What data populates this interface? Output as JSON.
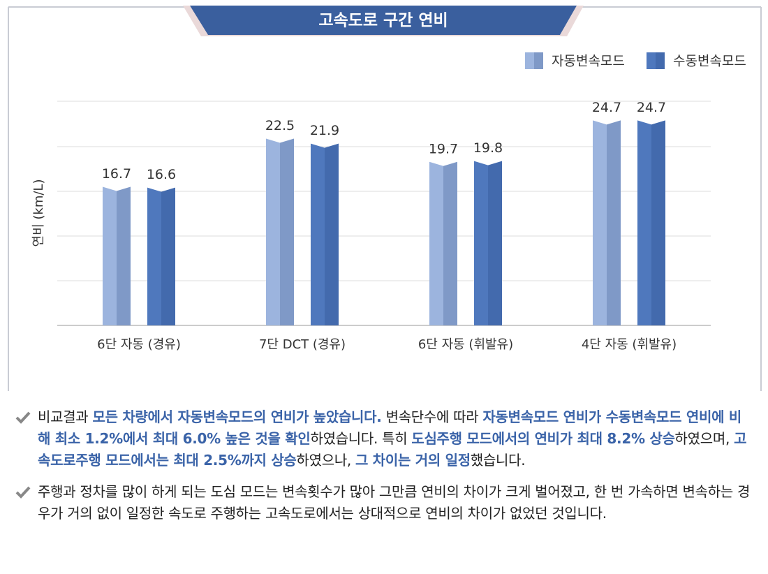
{
  "chart_data": {
    "type": "bar",
    "title": "고속도로 구간 연비",
    "y_label": "연비 (km/L)",
    "categories": [
      "6단 자동 (경유)",
      "7단 DCT (경유)",
      "6단 자동 (휘발유)",
      "4단 자동 (휘발유)"
    ],
    "series": [
      {
        "name": "자동변속모드",
        "color": "#9cb4de",
        "values": [
          16.7,
          22.5,
          19.7,
          24.7
        ]
      },
      {
        "name": "수동변속모드",
        "color": "#4f78bd",
        "values": [
          16.6,
          21.9,
          19.8,
          24.7
        ]
      }
    ],
    "ylim": [
      0,
      27
    ]
  },
  "notes": [
    [
      {
        "text": "비교결과 ",
        "emphasis": false
      },
      {
        "text": "모든 차량에서 자동변속모드의 연비가 높았습니다.",
        "emphasis": true
      },
      {
        "text": " 변속단수에 따라 ",
        "emphasis": false
      },
      {
        "text": "자동변속모드 연비가 수동변속모드 연비에 비해 최소 1.2%에서 최대 6.0% 높은 것을 확인",
        "emphasis": true
      },
      {
        "text": "하였습니다. 특히 ",
        "emphasis": false
      },
      {
        "text": "도심주행 모드에서의 연비가 최대 8.2% 상승",
        "emphasis": true
      },
      {
        "text": "하였으며, ",
        "emphasis": false
      },
      {
        "text": "고속도로주행 모드에서는 최대 2.5%까지 상승",
        "emphasis": true
      },
      {
        "text": "하였으나, ",
        "emphasis": false
      },
      {
        "text": "그 차이는 거의 일정",
        "emphasis": true
      },
      {
        "text": "했습니다.",
        "emphasis": false
      }
    ],
    [
      {
        "text": "주행과 정차를 많이 하게 되는 도심 모드는 변속횟수가 많아 그만큼 연비의 차이가 크게 벌어졌고, 한 번 가속하면 변속하는 경우가 거의 없이 일정한 속도로 주행하는 고속도로에서는 상대적으로 연비의 차이가 없었던 것입니다.",
        "emphasis": false
      }
    ]
  ]
}
